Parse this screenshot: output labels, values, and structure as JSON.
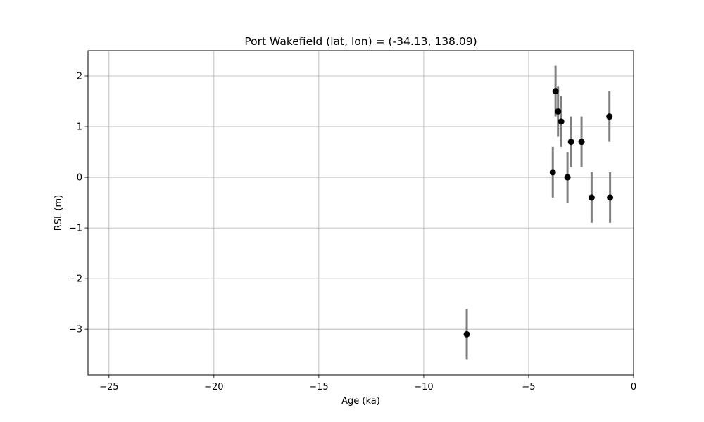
{
  "chart_data": {
    "type": "scatter",
    "title": "Port Wakefield (lat, lon) = (-34.13, 138.09)",
    "xlabel": "Age (ka)",
    "ylabel": "RSL (m)",
    "xlim": [
      -26,
      0
    ],
    "ylim": [
      -3.9,
      2.5
    ],
    "xticks": [
      -25,
      -20,
      -15,
      -10,
      -5,
      0
    ],
    "yticks": [
      -3,
      -2,
      -1,
      0,
      1,
      2
    ],
    "xtick_labels": [
      "−25",
      "−20",
      "−15",
      "−10",
      "−5",
      "0"
    ],
    "ytick_labels": [
      "−3",
      "−2",
      "−1",
      "0",
      "1",
      "2"
    ],
    "grid": true,
    "point_color": "#000000",
    "errorbar_color": "#808080",
    "points": [
      {
        "x": -7.95,
        "y": -3.1,
        "yerr": 0.5
      },
      {
        "x": -3.85,
        "y": 0.1,
        "yerr": 0.5
      },
      {
        "x": -3.72,
        "y": 1.7,
        "yerr": 0.5
      },
      {
        "x": -3.6,
        "y": 1.3,
        "yerr": 0.5
      },
      {
        "x": -3.45,
        "y": 1.1,
        "yerr": 0.5
      },
      {
        "x": -3.15,
        "y": 0.0,
        "yerr": 0.5
      },
      {
        "x": -2.98,
        "y": 0.7,
        "yerr": 0.5
      },
      {
        "x": -2.48,
        "y": 0.7,
        "yerr": 0.5
      },
      {
        "x": -2.0,
        "y": -0.4,
        "yerr": 0.5
      },
      {
        "x": -1.15,
        "y": 1.2,
        "yerr": 0.5
      },
      {
        "x": -1.12,
        "y": -0.4,
        "yerr": 0.5
      }
    ]
  }
}
